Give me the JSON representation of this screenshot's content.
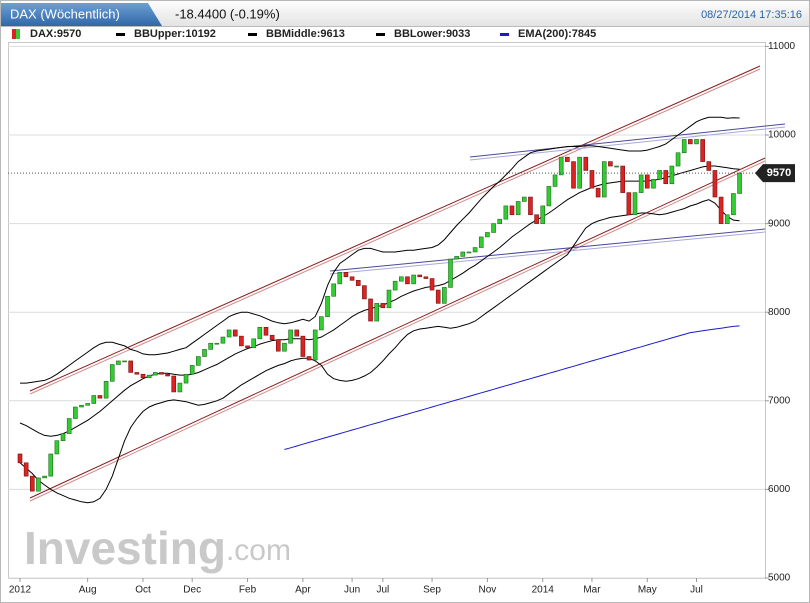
{
  "chart_data": {
    "type": "candlestick",
    "title": "DAX (Wöchentlich)",
    "change": "-18.4400 (-0.19%)",
    "timestamp": "08/27/2014 17:35:16",
    "watermark": [
      "Investing",
      ".com"
    ],
    "categories": [
      "2012",
      null,
      null,
      null,
      null,
      null,
      null,
      null,
      null,
      null,
      null,
      "Aug",
      null,
      null,
      null,
      null,
      null,
      null,
      null,
      null,
      "Oct",
      null,
      null,
      null,
      null,
      null,
      null,
      null,
      "Dec",
      null,
      null,
      null,
      null,
      null,
      null,
      null,
      null,
      "Feb",
      null,
      null,
      null,
      null,
      null,
      null,
      null,
      null,
      "Apr",
      null,
      null,
      null,
      null,
      null,
      null,
      null,
      "Jun",
      null,
      null,
      null,
      null,
      "Jul",
      null,
      null,
      null,
      null,
      null,
      null,
      null,
      "Sep",
      null,
      null,
      null,
      null,
      null,
      null,
      null,
      null,
      "Nov",
      null,
      null,
      null,
      null,
      null,
      null,
      null,
      null,
      "2014",
      null,
      null,
      null,
      null,
      null,
      null,
      null,
      "Mar",
      null,
      null,
      null,
      null,
      null,
      null,
      null,
      null,
      "May",
      null,
      null,
      null,
      null,
      null,
      null,
      null,
      "Jul",
      null,
      null,
      null,
      null,
      null,
      null,
      null
    ],
    "ylim": [
      5000,
      11050
    ],
    "yticks": [
      5000,
      6000,
      7000,
      8000,
      9000,
      10000,
      11000
    ],
    "grid": true,
    "series": [
      {
        "name": "DAX:9570",
        "up_color": "#33cc33",
        "down_color": "#dd2222",
        "open": [
          6400,
          6300,
          6150,
          5980,
          6130,
          6150,
          6400,
          6550,
          6630,
          6800,
          6930,
          6950,
          6970,
          7060,
          7030,
          7220,
          7410,
          7450,
          7450,
          7320,
          7300,
          7260,
          7290,
          7320,
          7300,
          7280,
          7100,
          7200,
          7300,
          7400,
          7500,
          7580,
          7650,
          7650,
          7720,
          7800,
          7730,
          7620,
          7600,
          7700,
          7830,
          7740,
          7690,
          7560,
          7650,
          7800,
          7730,
          7500,
          7460,
          7800,
          7950,
          8180,
          8320,
          8450,
          8400,
          8360,
          8300,
          8150,
          7900,
          8100,
          8050,
          8250,
          8350,
          8400,
          8320,
          8420,
          8400,
          8380,
          8250,
          8100,
          8280,
          8600,
          8630,
          8680,
          8680,
          8730,
          8850,
          8900,
          9000,
          9050,
          9200,
          9100,
          9250,
          9300,
          9100,
          9000,
          9200,
          9420,
          9550,
          9750,
          9700,
          9400,
          9750,
          9600,
          9400,
          9300,
          9700,
          9650,
          9650,
          9350,
          9100,
          9350,
          9550,
          9400,
          9500,
          9600,
          9450,
          9650,
          9800,
          9950,
          9900,
          9950,
          9700,
          9600,
          9300,
          9000,
          9100,
          9340
        ],
        "close": [
          6300,
          6150,
          5980,
          6130,
          6150,
          6400,
          6550,
          6630,
          6800,
          6930,
          6950,
          6970,
          7060,
          7030,
          7220,
          7410,
          7450,
          7450,
          7320,
          7300,
          7260,
          7290,
          7320,
          7300,
          7280,
          7100,
          7200,
          7300,
          7400,
          7500,
          7580,
          7650,
          7650,
          7720,
          7800,
          7730,
          7620,
          7600,
          7700,
          7830,
          7740,
          7690,
          7560,
          7650,
          7800,
          7730,
          7500,
          7460,
          7800,
          7950,
          8180,
          8320,
          8450,
          8400,
          8360,
          8300,
          8150,
          7900,
          8100,
          8050,
          8250,
          8350,
          8400,
          8320,
          8420,
          8400,
          8380,
          8250,
          8100,
          8280,
          8600,
          8630,
          8680,
          8680,
          8730,
          8850,
          8900,
          9000,
          9050,
          9200,
          9100,
          9250,
          9300,
          9100,
          9000,
          9200,
          9420,
          9550,
          9750,
          9700,
          9400,
          9750,
          9600,
          9400,
          9300,
          9700,
          9650,
          9650,
          9350,
          9100,
          9350,
          9550,
          9400,
          9500,
          9600,
          9450,
          9650,
          9800,
          9950,
          9900,
          9950,
          9700,
          9600,
          9300,
          9000,
          9100,
          9340,
          9570
        ]
      },
      {
        "name": "BBUpper:10192",
        "color": "#000000",
        "values": [
          7200,
          7200,
          7210,
          7220,
          7230,
          7260,
          7300,
          7350,
          7400,
          7450,
          7500,
          7550,
          7600,
          7640,
          7660,
          7660,
          7640,
          7620,
          7580,
          7560,
          7530,
          7520,
          7520,
          7530,
          7540,
          7560,
          7580,
          7600,
          7650,
          7700,
          7750,
          7800,
          7850,
          7900,
          7950,
          7980,
          8000,
          8000,
          7980,
          7960,
          7930,
          7900,
          7880,
          7870,
          7880,
          7900,
          7920,
          7900,
          7950,
          8100,
          8300,
          8450,
          8550,
          8600,
          8650,
          8700,
          8720,
          8720,
          8700,
          8680,
          8680,
          8680,
          8690,
          8700,
          8700,
          8710,
          8720,
          8730,
          8760,
          8820,
          8900,
          8980,
          9050,
          9120,
          9200,
          9280,
          9350,
          9420,
          9480,
          9550,
          9620,
          9700,
          9750,
          9800,
          9820,
          9830,
          9840,
          9850,
          9860,
          9870,
          9870,
          9870,
          9880,
          9880,
          9870,
          9860,
          9850,
          9840,
          9830,
          9820,
          9820,
          9820,
          9830,
          9850,
          9870,
          9900,
          9950,
          10000,
          10050,
          10100,
          10150,
          10180,
          10200,
          10200,
          10200,
          10190,
          10195,
          10192
        ]
      },
      {
        "name": "BBMiddle:9613",
        "color": "#000000",
        "values": [
          6750,
          6720,
          6680,
          6640,
          6610,
          6600,
          6610,
          6630,
          6660,
          6700,
          6740,
          6780,
          6830,
          6880,
          6940,
          7000,
          7060,
          7120,
          7170,
          7210,
          7250,
          7280,
          7300,
          7310,
          7310,
          7300,
          7290,
          7290,
          7300,
          7320,
          7350,
          7380,
          7410,
          7450,
          7490,
          7530,
          7560,
          7590,
          7610,
          7640,
          7660,
          7680,
          7690,
          7690,
          7700,
          7700,
          7700,
          7690,
          7700,
          7720,
          7760,
          7800,
          7850,
          7900,
          7950,
          7990,
          8020,
          8040,
          8060,
          8080,
          8110,
          8140,
          8180,
          8210,
          8240,
          8260,
          8280,
          8290,
          8300,
          8320,
          8360,
          8400,
          8440,
          8490,
          8530,
          8580,
          8630,
          8680,
          8730,
          8790,
          8850,
          8900,
          8950,
          9000,
          9040,
          9080,
          9120,
          9170,
          9220,
          9270,
          9310,
          9350,
          9380,
          9410,
          9430,
          9450,
          9460,
          9470,
          9480,
          9480,
          9480,
          9480,
          9480,
          9490,
          9500,
          9520,
          9540,
          9560,
          9580,
          9600,
          9620,
          9640,
          9650,
          9650,
          9640,
          9630,
          9620,
          9613
        ]
      },
      {
        "name": "BBLower:9033",
        "color": "#000000",
        "values": [
          6300,
          6240,
          6180,
          6100,
          6050,
          6000,
          5960,
          5930,
          5900,
          5880,
          5860,
          5850,
          5860,
          5900,
          6000,
          6150,
          6350,
          6550,
          6700,
          6800,
          6880,
          6930,
          6960,
          6980,
          7000,
          7010,
          7000,
          6990,
          6970,
          6950,
          6960,
          6980,
          7000,
          7030,
          7080,
          7130,
          7180,
          7220,
          7260,
          7300,
          7340,
          7370,
          7400,
          7420,
          7450,
          7470,
          7480,
          7480,
          7450,
          7400,
          7300,
          7250,
          7230,
          7220,
          7230,
          7250,
          7280,
          7320,
          7380,
          7450,
          7530,
          7600,
          7680,
          7750,
          7790,
          7810,
          7820,
          7830,
          7840,
          7830,
          7820,
          7830,
          7850,
          7870,
          7900,
          7950,
          8000,
          8050,
          8100,
          8150,
          8200,
          8250,
          8300,
          8350,
          8400,
          8450,
          8500,
          8550,
          8600,
          8650,
          8750,
          8850,
          8950,
          9000,
          9030,
          9050,
          9070,
          9080,
          9090,
          9100,
          9110,
          9120,
          9120,
          9110,
          9100,
          9110,
          9130,
          9150,
          9170,
          9200,
          9220,
          9250,
          9270,
          9230,
          9150,
          9080,
          9040,
          9033
        ]
      },
      {
        "name": "EMA(200):7845",
        "color": "#1a1acc",
        "values": [
          null,
          null,
          null,
          null,
          null,
          null,
          null,
          null,
          null,
          null,
          null,
          null,
          null,
          null,
          null,
          null,
          null,
          null,
          null,
          null,
          null,
          null,
          null,
          null,
          null,
          null,
          null,
          null,
          null,
          null,
          null,
          null,
          null,
          null,
          null,
          null,
          null,
          null,
          null,
          null,
          null,
          null,
          null,
          6450,
          6470,
          6490,
          6510,
          6530,
          6550,
          6570,
          6590,
          6610,
          6630,
          6650,
          6670,
          6690,
          6710,
          6730,
          6750,
          6770,
          6790,
          6810,
          6830,
          6850,
          6870,
          6890,
          6910,
          6930,
          6950,
          6970,
          6990,
          7010,
          7030,
          7050,
          7070,
          7090,
          7110,
          7130,
          7150,
          7170,
          7190,
          7210,
          7230,
          7250,
          7270,
          7290,
          7310,
          7330,
          7350,
          7370,
          7390,
          7410,
          7430,
          7450,
          7470,
          7490,
          7510,
          7530,
          7550,
          7570,
          7590,
          7610,
          7630,
          7650,
          7670,
          7690,
          7710,
          7730,
          7750,
          7770,
          7780,
          7790,
          7800,
          7810,
          7820,
          7830,
          7840,
          7845
        ]
      }
    ]
  }
}
